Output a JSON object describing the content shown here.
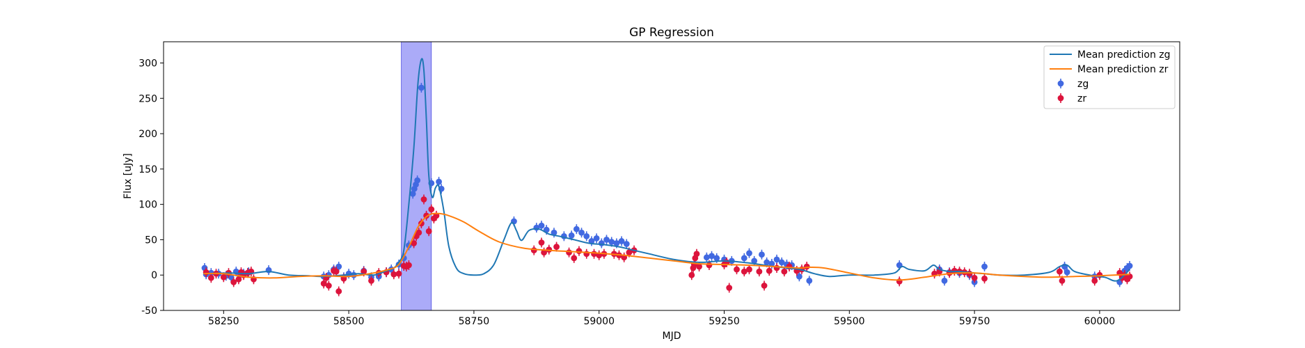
{
  "chart_data": {
    "type": "scatter",
    "title": "GP Regression",
    "xlabel": "MJD",
    "ylabel": "Flux [uJy]",
    "xlim": [
      58130,
      60160
    ],
    "ylim": [
      -50,
      330
    ],
    "xticks": [
      58250,
      58500,
      58750,
      59000,
      59250,
      59500,
      59750,
      60000
    ],
    "yticks": [
      -50,
      0,
      50,
      100,
      150,
      200,
      250,
      300
    ],
    "shaded_region": {
      "x_start": 58605,
      "x_end": 58665,
      "color": "#8f8ff5"
    },
    "legend_position": "upper right",
    "grid": false,
    "lines": [
      {
        "name": "Mean prediction zg",
        "color": "#1f77b4",
        "x": [
          58210,
          58260,
          58300,
          58340,
          58380,
          58420,
          58450,
          58490,
          58520,
          58550,
          58575,
          58590,
          58600,
          58610,
          58620,
          58630,
          58638,
          58645,
          58650,
          58655,
          58660,
          58667,
          58673,
          58680,
          58690,
          58700,
          58715,
          58730,
          58750,
          58770,
          58790,
          58810,
          58825,
          58835,
          58845,
          58860,
          58880,
          58900,
          58920,
          58950,
          58980,
          59010,
          59040,
          59070,
          59100,
          59150,
          59200,
          59250,
          59300,
          59350,
          59400,
          59430,
          59460,
          59500,
          59550,
          59590,
          59605,
          59620,
          59650,
          59668,
          59680,
          59700,
          59720,
          59750,
          59770,
          59800,
          59850,
          59900,
          59920,
          59935,
          59950,
          59980,
          60010,
          60035,
          60060
        ],
        "y": [
          2,
          3,
          2,
          5,
          0,
          -1,
          -2,
          0,
          2,
          0,
          6,
          10,
          18,
          35,
          100,
          180,
          270,
          305,
          290,
          220,
          140,
          110,
          123,
          125,
          90,
          40,
          10,
          2,
          0,
          2,
          15,
          50,
          74,
          63,
          49,
          63,
          65,
          58,
          55,
          50,
          45,
          43,
          40,
          35,
          30,
          22,
          18,
          20,
          17,
          12,
          8,
          2,
          -2,
          0,
          0,
          3,
          12,
          8,
          6,
          14,
          8,
          5,
          5,
          3,
          2,
          0,
          0,
          4,
          12,
          14,
          5,
          0,
          -3,
          -8,
          8
        ]
      },
      {
        "name": "Mean prediction zr",
        "color": "#ff7f0e",
        "x": [
          58210,
          58250,
          58300,
          58350,
          58400,
          58450,
          58500,
          58550,
          58580,
          58600,
          58620,
          58640,
          58660,
          58680,
          58700,
          58730,
          58760,
          58800,
          58850,
          58900,
          58950,
          59000,
          59050,
          59100,
          59150,
          59200,
          59250,
          59300,
          59350,
          59400,
          59420,
          59450,
          59500,
          59550,
          59600,
          59650,
          59700,
          59750,
          59800,
          59850,
          59900,
          59950,
          60000,
          60060
        ],
        "y": [
          2,
          2,
          -3,
          -4,
          -2,
          -1,
          -2,
          3,
          8,
          15,
          40,
          70,
          85,
          87,
          84,
          75,
          62,
          47,
          38,
          35,
          33,
          31,
          28,
          24,
          20,
          16,
          15,
          14,
          12,
          10,
          11,
          10,
          3,
          -4,
          -7,
          -3,
          2,
          3,
          0,
          -2,
          -3,
          -2,
          -1,
          1
        ]
      }
    ],
    "series": [
      {
        "name": "zg",
        "color": "#4169e1",
        "points": [
          [
            58212,
            10
          ],
          [
            58215,
            1
          ],
          [
            58225,
            3
          ],
          [
            58240,
            2
          ],
          [
            58255,
            -1
          ],
          [
            58265,
            -3
          ],
          [
            58275,
            5
          ],
          [
            58282,
            0
          ],
          [
            58290,
            2
          ],
          [
            58300,
            4
          ],
          [
            58340,
            7
          ],
          [
            58450,
            -2
          ],
          [
            58460,
            0
          ],
          [
            58470,
            8
          ],
          [
            58480,
            12
          ],
          [
            58490,
            -3
          ],
          [
            58500,
            2
          ],
          [
            58510,
            0
          ],
          [
            58530,
            6
          ],
          [
            58545,
            -3
          ],
          [
            58560,
            -2
          ],
          [
            58575,
            4
          ],
          [
            58585,
            8
          ],
          [
            58600,
            15
          ],
          [
            58610,
            24
          ],
          [
            58620,
            42
          ],
          [
            58628,
            115
          ],
          [
            58631,
            122
          ],
          [
            58634,
            128
          ],
          [
            58637,
            134
          ],
          [
            58645,
            265
          ],
          [
            58665,
            130
          ],
          [
            58680,
            132
          ],
          [
            58685,
            122
          ],
          [
            58830,
            76
          ],
          [
            58875,
            67
          ],
          [
            58885,
            70
          ],
          [
            58895,
            64
          ],
          [
            58910,
            60
          ],
          [
            58930,
            55
          ],
          [
            58945,
            56
          ],
          [
            58955,
            65
          ],
          [
            58965,
            60
          ],
          [
            58975,
            55
          ],
          [
            58985,
            48
          ],
          [
            58995,
            52
          ],
          [
            59005,
            45
          ],
          [
            59015,
            50
          ],
          [
            59025,
            47
          ],
          [
            59035,
            45
          ],
          [
            59045,
            48
          ],
          [
            59055,
            44
          ],
          [
            59215,
            25
          ],
          [
            59225,
            27
          ],
          [
            59235,
            24
          ],
          [
            59250,
            22
          ],
          [
            59265,
            20
          ],
          [
            59290,
            24
          ],
          [
            59300,
            31
          ],
          [
            59310,
            20
          ],
          [
            59325,
            29
          ],
          [
            59335,
            18
          ],
          [
            59345,
            16
          ],
          [
            59355,
            22
          ],
          [
            59365,
            18
          ],
          [
            59375,
            15
          ],
          [
            59385,
            14
          ],
          [
            59400,
            -2
          ],
          [
            59420,
            -8
          ],
          [
            59600,
            14
          ],
          [
            59680,
            8
          ],
          [
            59690,
            -8
          ],
          [
            59700,
            4
          ],
          [
            59720,
            3
          ],
          [
            59740,
            0
          ],
          [
            59750,
            -10
          ],
          [
            59770,
            12
          ],
          [
            59930,
            12
          ],
          [
            59935,
            4
          ],
          [
            59990,
            -2
          ],
          [
            60040,
            -10
          ],
          [
            60050,
            6
          ],
          [
            60055,
            10
          ],
          [
            60060,
            13
          ]
        ]
      },
      {
        "name": "zr",
        "color": "#dc143c",
        "points": [
          [
            58215,
            4
          ],
          [
            58225,
            -4
          ],
          [
            58235,
            2
          ],
          [
            58250,
            -3
          ],
          [
            58260,
            3
          ],
          [
            58270,
            -10
          ],
          [
            58280,
            -6
          ],
          [
            58285,
            4
          ],
          [
            58290,
            0
          ],
          [
            58298,
            3
          ],
          [
            58305,
            5
          ],
          [
            58310,
            -6
          ],
          [
            58450,
            -12
          ],
          [
            58455,
            -4
          ],
          [
            58460,
            -15
          ],
          [
            58470,
            6
          ],
          [
            58475,
            5
          ],
          [
            58480,
            -23
          ],
          [
            58490,
            -5
          ],
          [
            58530,
            5
          ],
          [
            58545,
            -8
          ],
          [
            58560,
            3
          ],
          [
            58575,
            4
          ],
          [
            58590,
            1
          ],
          [
            58600,
            2
          ],
          [
            58610,
            13
          ],
          [
            58615,
            12
          ],
          [
            58620,
            14
          ],
          [
            58630,
            45
          ],
          [
            58635,
            55
          ],
          [
            58640,
            60
          ],
          [
            58645,
            73
          ],
          [
            58650,
            107
          ],
          [
            58655,
            84
          ],
          [
            58660,
            62
          ],
          [
            58665,
            93
          ],
          [
            58670,
            80
          ],
          [
            58675,
            84
          ],
          [
            58870,
            35
          ],
          [
            58885,
            46
          ],
          [
            58890,
            32
          ],
          [
            58900,
            36
          ],
          [
            58915,
            40
          ],
          [
            58940,
            32
          ],
          [
            58950,
            24
          ],
          [
            58960,
            34
          ],
          [
            58975,
            30
          ],
          [
            58990,
            30
          ],
          [
            59000,
            28
          ],
          [
            59010,
            30
          ],
          [
            59030,
            30
          ],
          [
            59040,
            28
          ],
          [
            59050,
            25
          ],
          [
            59060,
            32
          ],
          [
            59070,
            35
          ],
          [
            59185,
            0
          ],
          [
            59188,
            10
          ],
          [
            59190,
            15
          ],
          [
            59192,
            24
          ],
          [
            59195,
            30
          ],
          [
            59200,
            12
          ],
          [
            59220,
            14
          ],
          [
            59250,
            15
          ],
          [
            59255,
            18
          ],
          [
            59260,
            -18
          ],
          [
            59275,
            8
          ],
          [
            59290,
            5
          ],
          [
            59300,
            8
          ],
          [
            59320,
            5
          ],
          [
            59330,
            -15
          ],
          [
            59340,
            6
          ],
          [
            59355,
            10
          ],
          [
            59370,
            5
          ],
          [
            59380,
            12
          ],
          [
            59395,
            6
          ],
          [
            59405,
            8
          ],
          [
            59415,
            12
          ],
          [
            59600,
            -9
          ],
          [
            59670,
            2
          ],
          [
            59680,
            5
          ],
          [
            59700,
            3
          ],
          [
            59710,
            6
          ],
          [
            59720,
            5
          ],
          [
            59730,
            4
          ],
          [
            59740,
            2
          ],
          [
            59750,
            -4
          ],
          [
            59770,
            -5
          ],
          [
            59920,
            5
          ],
          [
            59925,
            -8
          ],
          [
            59990,
            -8
          ],
          [
            60000,
            0
          ],
          [
            60040,
            3
          ],
          [
            60045,
            -4
          ],
          [
            60050,
            0
          ],
          [
            60055,
            -6
          ],
          [
            60060,
            -2
          ]
        ]
      }
    ]
  }
}
